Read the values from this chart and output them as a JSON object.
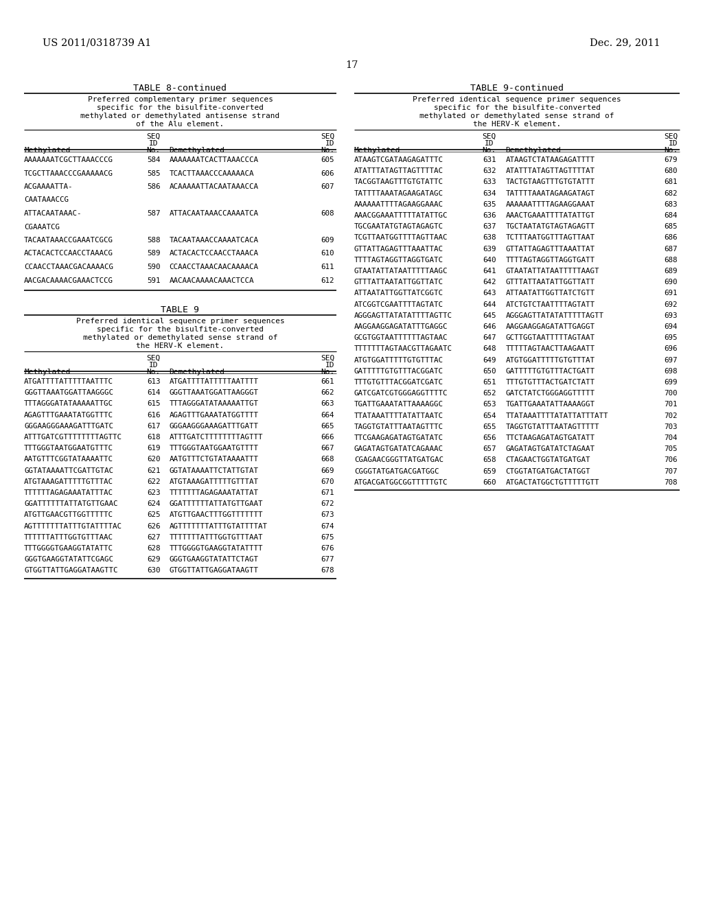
{
  "page_header_left": "US 2011/0318739 A1",
  "page_header_right": "Dec. 29, 2011",
  "page_number": "17",
  "background_color": "#ffffff",
  "text_color": "#000000",
  "left_table_title": "TABLE 8-continued",
  "left_table_subtitle": [
    "Preferred complementary primer sequences",
    "specific for the bisulfite-converted",
    "methylated or demethylated antisense strand",
    "of the Alu element."
  ],
  "left_rows": [
    [
      "AAAAAAATCGCTTAAACCCG",
      "584",
      "AAAAAAATCACTTAAACCCA",
      "605"
    ],
    [
      "TCGCTTAAACCCGAAAAACG",
      "585",
      "TCACTTAAACCCAAAAACA",
      "606"
    ],
    [
      "ACGAAAATTA-",
      "586",
      "ACAAAAATTACAATAAACCA",
      "607",
      "CAATAAACCG"
    ],
    [
      "ATTACAATAAAC-",
      "587",
      "ATTACAATAAACCAAAATCA",
      "608",
      "CGAAATCG"
    ],
    [
      "TACAATAAACCGAAATCGCG",
      "588",
      "TACAATAAACCAAAATCACA",
      "609"
    ],
    [
      "ACTACACTCCAACCTAAACG",
      "589",
      "ACTACACTCCAACCTAAACA",
      "610"
    ],
    [
      "CCAACCTAAACGACAAAACG",
      "590",
      "CCAACCTAAACAACAAAACA",
      "611"
    ],
    [
      "AACGACAAAACGAAACTCCG",
      "591",
      "AACAACAAAACAAACTCCA",
      "612"
    ]
  ],
  "left_table2_title": "TABLE 9",
  "left_table2_subtitle": [
    "Preferred identical sequence primer sequences",
    "specific for the bisulfite-converted",
    "methylated or demethylated sense strand of",
    "the HERV-K element."
  ],
  "left_rows2": [
    [
      "ATGATTTTATTTTTAATTTC",
      "613",
      "ATGATTTTATTTTTAATTTT",
      "661"
    ],
    [
      "GGGTTAAATGGATTAAGGGC",
      "614",
      "GGGTTAAATGGATTAAGGGT",
      "662"
    ],
    [
      "TTTAGGGATATAAAAATTGC",
      "615",
      "TTTAGGGATATAAAAATTGT",
      "663"
    ],
    [
      "AGAGTTTGAAATATGGTTTC",
      "616",
      "AGAGTTTGAAATATGGTTTT",
      "664"
    ],
    [
      "GGGAAGGGAAAGATTTGATC",
      "617",
      "GGGAAGGGAAAGATTTGATT",
      "665"
    ],
    [
      "ATTTGATCGTTTTTTTTAGTTC",
      "618",
      "ATTTGATCTTTTTTTTAGTTT",
      "666"
    ],
    [
      "TTTGGGTAATGGAATGTTTC",
      "619",
      "TTTGGGTAATGGAATGTTTT",
      "667"
    ],
    [
      "AATGTTTCGGTATAAAATTC",
      "620",
      "AATGTTTCTGTATAAAATTT",
      "668"
    ],
    [
      "GGTATAAAATTCGATTGTAC",
      "621",
      "GGTATAAAATTCTATTGTAT",
      "669"
    ],
    [
      "ATGTAAAGATTTTTGTTTAC",
      "622",
      "ATGTAAAGATTTTTGTTTAT",
      "670"
    ],
    [
      "TTTTTTAGAGAAATATTTAC",
      "623",
      "TTTTTTTAGAGAAATATTAT",
      "671"
    ],
    [
      "GGATTTTTTATTATGTTGAAC",
      "624",
      "GGATTTTTTATTATGTTGAAT",
      "672"
    ],
    [
      "ATGTTGAACGTTGGTTTTTC",
      "625",
      "ATGTTGAACTTTGGTTTTTTT",
      "673"
    ],
    [
      "AGTTTTTTTATTTGTATTTTAC",
      "626",
      "AGTTTTTTTATTTGTATTTTAT",
      "674"
    ],
    [
      "TTTTTTATTTGGTGTTTAAC",
      "627",
      "TTTTTTTATTTGGTGTTTAAT",
      "675"
    ],
    [
      "TTTGGGGTGAAGGTATATTC",
      "628",
      "TTTGGGGTGAAGGTATATTTT",
      "676"
    ],
    [
      "GGGTGAAGGTATATTCGAGC",
      "629",
      "GGGTGAAGGTATATTCTAGT",
      "677"
    ],
    [
      "GTGGTTATTGAGGATAAGTTC",
      "630",
      "GTGGTTATTGAGGATAAGTT",
      "678"
    ]
  ],
  "right_table_title": "TABLE 9-continued",
  "right_table_subtitle": [
    "Preferred identical sequence primer sequences",
    "specific for the bisulfite-converted",
    "methylated or demethylated sense strand of",
    "the HERV-K element."
  ],
  "right_rows": [
    [
      "ATAAGTCGATAAGAGATTTC",
      "631",
      "ATAAGTCTATAAGAGATTTT",
      "679"
    ],
    [
      "ATATTTATAGTTAGTTTTAC",
      "632",
      "ATATTTATAGTTAGTTTTAT",
      "680"
    ],
    [
      "TACGGTAAGTTTGTGTATTC",
      "633",
      "TACTGTAAGTTTGTGTATTT",
      "681"
    ],
    [
      "TATTTTAAATAGAAGATAGC",
      "634",
      "TATTTTAAATAGAAGATAGT",
      "682"
    ],
    [
      "AAAAAATTTTAGAAGGAAAC",
      "635",
      "AAAAAATTTTAGAAGGAAAT",
      "683"
    ],
    [
      "AAACGGAAATTTTTATATTGC",
      "636",
      "AAACTGAAATTTTATATTGT",
      "684"
    ],
    [
      "TGCGAATATGTAGTAGAGTC",
      "637",
      "TGCTAATATGTAGTAGAGTT",
      "685"
    ],
    [
      "TCGTTAATGGTTTTAGTTAAC",
      "638",
      "TCTTTAATGGTTTAGTTAAT",
      "686"
    ],
    [
      "GTTATTAGAGTTTAAATTAC",
      "639",
      "GTTATTAGAGTTTAAATTAT",
      "687"
    ],
    [
      "TTTTAGTAGGTTAGGTGATC",
      "640",
      "TTTTAGTAGGTTAGGTGATT",
      "688"
    ],
    [
      "GTAATATTATAATTTTTAAGC",
      "641",
      "GTAATATTATAATTTTTAAGT",
      "689"
    ],
    [
      "GTTTATTAATATTGGTTATC",
      "642",
      "GTTTATTAATATTGGTTATT",
      "690"
    ],
    [
      "ATTAATATTGGTTATCGGTC",
      "643",
      "ATTAATATTGGTTATCTGTT",
      "691"
    ],
    [
      "ATCGGTCGAATTTTAGTATC",
      "644",
      "ATCTGTCTAATTTTAGTATT",
      "692"
    ],
    [
      "AGGGAGTTATATATTTTAGTTC",
      "645",
      "AGGGAGTTATATATTTTTAGTT",
      "693"
    ],
    [
      "AAGGAAGGAGATATTTGAGGC",
      "646",
      "AAGGAAGGAGATATTGAGGT",
      "694"
    ],
    [
      "GCGTGGTAATTTTTTAGTAAC",
      "647",
      "GCTTGGTAATTTTTAGTAAT",
      "695"
    ],
    [
      "TTTTTTTAGTAACGTTAGAATC",
      "648",
      "TTTTTAGTAACTTAAGAATT",
      "696"
    ],
    [
      "ATGTGGATTTTTGTGTTTAC",
      "649",
      "ATGTGGATTTTTGTGTTTAT",
      "697"
    ],
    [
      "GATTTTTGTGTTTACGGATC",
      "650",
      "GATTTTTGTGTTTACTGATT",
      "698"
    ],
    [
      "TTTGTGTTTACGGATCGATC",
      "651",
      "TTTGTGTTTACTGATCTATT",
      "699"
    ],
    [
      "GATCGATCGTGGGAGGTTTTC",
      "652",
      "GATCTATCTGGGAGGTTTTT",
      "700"
    ],
    [
      "TGATTGAAATATTAAAAGGC",
      "653",
      "TGATTGAAATATTAAAAGGT",
      "701"
    ],
    [
      "TTATAAATTTTATATTAATC",
      "654",
      "TTATAAATTTTATATTATTTATT",
      "702"
    ],
    [
      "TAGGTGTATTTAATAGTTTC",
      "655",
      "TAGGTGTATTTAATAGTTTTT",
      "703"
    ],
    [
      "TTCGAAGAGATAGTGATATC",
      "656",
      "TTCTAAGAGATAGTGATATT",
      "704"
    ],
    [
      "GAGATAGTGATATCAGAAAC",
      "657",
      "GAGATAGTGATATCTAGAAT",
      "705"
    ],
    [
      "CGAGAACGGGTTATGATGAC",
      "658",
      "CTAGAACTGGTATGATGAT",
      "706"
    ],
    [
      "CGGGTATGATGACGATGGC",
      "659",
      "CTGGTATGATGACTATGGT",
      "707"
    ],
    [
      "ATGACGATGGCGGTTTTTGTC",
      "660",
      "ATGACTATGGCTGTTTTTGTT",
      "708"
    ]
  ]
}
